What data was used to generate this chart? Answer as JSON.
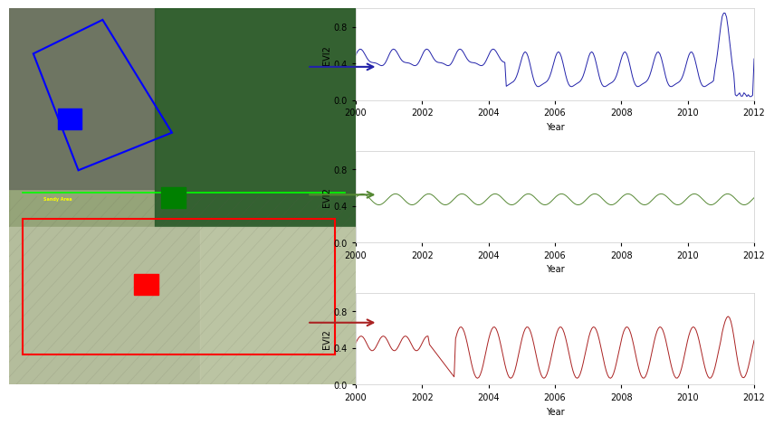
{
  "ylim": [
    0.0,
    1.0
  ],
  "yticks": [
    0.0,
    0.4,
    0.8
  ],
  "xlim": [
    2000,
    2012
  ],
  "xticks": [
    2000,
    2002,
    2004,
    2006,
    2008,
    2010,
    2012
  ],
  "xlabel": "Year",
  "ylabel": "EVI2",
  "plot1_color": "#2222aa",
  "plot2_color": "#558833",
  "plot3_color": "#aa2222",
  "bg_color": "#ffffff"
}
